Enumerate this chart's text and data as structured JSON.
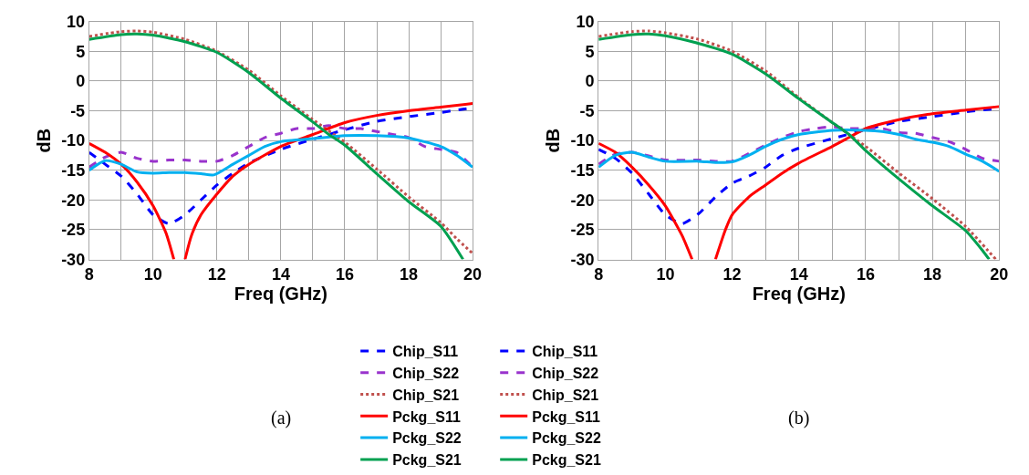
{
  "chart_data": [
    {
      "type": "line",
      "xlabel": "Freq (GHz)",
      "ylabel": "dB",
      "xlim": [
        8,
        20
      ],
      "xticks": [
        8,
        {
          "value": 9,
          "label": null
        },
        10,
        {
          "value": 11,
          "label": null
        },
        12,
        {
          "value": 13,
          "label": null
        },
        14,
        {
          "value": 15,
          "label": null
        },
        16,
        {
          "value": 17,
          "label": null
        },
        18,
        {
          "value": 19,
          "label": null
        },
        20
      ],
      "ylim": [
        -30,
        10
      ],
      "yticks": [
        -30,
        -25,
        -20,
        -15,
        -10,
        -5,
        0,
        5,
        10
      ],
      "grid": true,
      "legend": "bottom",
      "marker": "none",
      "annotations": [
        "(a)"
      ],
      "series": [
        {
          "name": "Chip_S11",
          "color": "#0000ff",
          "line_style": "dashed",
          "x": [
            8,
            8.5,
            9,
            9.5,
            10,
            10.5,
            11,
            11.5,
            12,
            12.5,
            13,
            14,
            15,
            16,
            17,
            18,
            19,
            20
          ],
          "values": [
            -12,
            -14,
            -16,
            -19,
            -22.5,
            -24,
            -22.5,
            -20,
            -17.5,
            -15.5,
            -13.8,
            -11.5,
            -9.8,
            -8.2,
            -6.8,
            -6,
            -5.3,
            -4.5
          ]
        },
        {
          "name": "Chip_S22",
          "color": "#9933cc",
          "line_style": "dashed",
          "x": [
            8,
            8.5,
            9,
            9.5,
            10,
            10.5,
            11,
            11.5,
            12,
            12.5,
            13,
            13.5,
            14,
            14.5,
            15,
            15.5,
            16,
            16.5,
            17,
            17.5,
            18,
            18.5,
            19,
            19.5,
            20
          ],
          "values": [
            -14.5,
            -12.8,
            -12,
            -13,
            -13.5,
            -13.3,
            -13.3,
            -13.5,
            -13.5,
            -12.5,
            -11,
            -9.5,
            -8.8,
            -8,
            -8,
            -7.5,
            -8,
            -8,
            -8.5,
            -9,
            -9.5,
            -11,
            -11.5,
            -12,
            -14.5
          ]
        },
        {
          "name": "Chip_S21",
          "color": "#c0504d",
          "line_style": "dotted",
          "x": [
            8,
            9,
            9.5,
            10,
            11,
            12,
            13,
            14,
            15,
            16,
            17,
            18,
            19,
            19.5,
            20
          ],
          "values": [
            7.5,
            8.3,
            8.4,
            8.2,
            7,
            5,
            1.8,
            -2.5,
            -6.5,
            -10.3,
            -14.8,
            -19.5,
            -23.8,
            -26.5,
            -29
          ]
        },
        {
          "name": "Pckg_S11",
          "color": "#ff0000",
          "line_style": "solid",
          "x": [
            8,
            8.5,
            9,
            9.5,
            10,
            10.4,
            10.65,
            10.8,
            11,
            11.2,
            11.5,
            12,
            12.5,
            13,
            14,
            15,
            16,
            17,
            18,
            19,
            20
          ],
          "values": [
            -10.5,
            -12,
            -14,
            -17,
            -21,
            -25.5,
            -30,
            null,
            -30,
            -26,
            -22.5,
            -19,
            -16,
            -14,
            -11,
            -9,
            -7,
            -5.8,
            -5,
            -4.4,
            -3.8
          ]
        },
        {
          "name": "Pckg_S22",
          "color": "#00b0f0",
          "line_style": "solid",
          "x": [
            8,
            8.5,
            9,
            9.5,
            10,
            10.5,
            11,
            11.5,
            11.9,
            12.5,
            13,
            13.5,
            14,
            15,
            16,
            17,
            18,
            19,
            19.5,
            20
          ],
          "values": [
            -15,
            -13.4,
            -14,
            -15.3,
            -15.5,
            -15.4,
            -15.4,
            -15.6,
            -15.8,
            -14,
            -12.5,
            -11,
            -10.2,
            -9.7,
            -9.2,
            -9.2,
            -9.6,
            -11,
            -12.5,
            -14.5
          ]
        },
        {
          "name": "Pckg_S21",
          "color": "#00a050",
          "line_style": "solid",
          "x": [
            8,
            9,
            9.5,
            10,
            11,
            12,
            13,
            14,
            15,
            15.5,
            16,
            17,
            18,
            19,
            19.7
          ],
          "values": [
            7,
            7.8,
            7.9,
            7.7,
            6.6,
            4.8,
            1.4,
            -2.9,
            -6.9,
            -9,
            -10.8,
            -15.6,
            -20.3,
            -24.4,
            -30
          ]
        }
      ]
    },
    {
      "type": "line",
      "xlabel": "Freq (GHz)",
      "ylabel": "dB",
      "xlim": [
        8,
        20
      ],
      "xticks": [
        8,
        {
          "value": 9,
          "label": null
        },
        10,
        {
          "value": 11,
          "label": null
        },
        12,
        {
          "value": 13,
          "label": null
        },
        14,
        {
          "value": 15,
          "label": null
        },
        16,
        {
          "value": 17,
          "label": null
        },
        18,
        {
          "value": 19,
          "label": null
        },
        20
      ],
      "ylim": [
        -30,
        10
      ],
      "yticks": [
        -30,
        -25,
        -20,
        -15,
        -10,
        -5,
        0,
        5,
        10
      ],
      "grid": true,
      "legend": "bottom",
      "marker": "none",
      "annotations": [
        "(b)"
      ],
      "series": [
        {
          "name": "Chip_S11",
          "color": "#0000ff",
          "line_style": "dashed",
          "x": [
            8,
            8.5,
            9,
            9.5,
            10,
            10.5,
            11,
            11.5,
            12,
            12.5,
            13,
            13.5,
            14,
            15,
            16,
            17,
            18,
            19,
            20
          ],
          "values": [
            -11.5,
            -13,
            -15.5,
            -19,
            -22.5,
            -24,
            -22.3,
            -19.5,
            -17.2,
            -16,
            -14.5,
            -12.5,
            -11.3,
            -9.7,
            -8.2,
            -6.8,
            -6,
            -5.2,
            -4.6
          ]
        },
        {
          "name": "Chip_S22",
          "color": "#9933cc",
          "line_style": "dashed",
          "x": [
            8,
            8.5,
            9,
            9.5,
            10,
            11,
            11.5,
            12,
            12.5,
            13,
            13.5,
            14,
            14.5,
            15,
            15.5,
            16,
            16.5,
            17,
            17.5,
            18,
            18.5,
            19,
            19.5,
            20
          ],
          "values": [
            -14,
            -12.3,
            -12,
            -12.6,
            -13.3,
            -13.3,
            -13.5,
            -13.5,
            -12.2,
            -10.8,
            -9.5,
            -8.5,
            -8,
            -7.7,
            -8,
            -8,
            -8,
            -8.7,
            -8.8,
            -9.5,
            -10.2,
            -11.5,
            -13,
            -13.5
          ]
        },
        {
          "name": "Chip_S21",
          "color": "#c0504d",
          "line_style": "dotted",
          "x": [
            8,
            9,
            9.5,
            10,
            11,
            12,
            13,
            14,
            15,
            16,
            17,
            18,
            19,
            19.9
          ],
          "values": [
            7.5,
            8.3,
            8.4,
            8.1,
            7,
            5,
            1.7,
            -2.8,
            -7,
            -11,
            -15.5,
            -19.8,
            -24.5,
            -30
          ]
        },
        {
          "name": "Pckg_S11",
          "color": "#ff0000",
          "line_style": "solid",
          "x": [
            8,
            8.5,
            9,
            9.5,
            10,
            10.5,
            10.8,
            11.1,
            11.5,
            11.8,
            12,
            12.5,
            13,
            13.5,
            14,
            15,
            15.5,
            16,
            17,
            18,
            19,
            20
          ],
          "values": [
            -10.5,
            -12,
            -14.5,
            -17.5,
            -21,
            -26,
            -30,
            null,
            -30,
            -25,
            -22.5,
            -19.5,
            -17.5,
            -15.5,
            -13.8,
            -11,
            -9.5,
            -8,
            -6.5,
            -5.5,
            -4.9,
            -4.3
          ]
        },
        {
          "name": "Pckg_S22",
          "color": "#00b0f0",
          "line_style": "solid",
          "x": [
            8,
            8.5,
            9,
            9.5,
            10,
            11,
            11.5,
            12,
            12.5,
            13,
            13.5,
            14,
            15,
            16,
            16.5,
            17,
            17.5,
            18,
            18.5,
            19,
            19.5,
            20
          ],
          "values": [
            -14.5,
            -12.5,
            -12,
            -12.8,
            -13.5,
            -13.5,
            -13.7,
            -13.6,
            -12.5,
            -11,
            -9.8,
            -9,
            -8.3,
            -8.3,
            -8.5,
            -9,
            -9.8,
            -10.3,
            -11,
            -12.3,
            -13.5,
            -15.2
          ]
        },
        {
          "name": "Pckg_S21",
          "color": "#00a050",
          "line_style": "solid",
          "x": [
            8,
            9,
            9.5,
            10,
            11,
            12,
            13,
            14,
            15,
            15.5,
            16,
            17,
            18,
            19,
            19.5,
            19.7
          ],
          "values": [
            7,
            7.8,
            7.9,
            7.6,
            6.3,
            4.5,
            1.2,
            -3,
            -7,
            -9,
            -11.7,
            -16.5,
            -21,
            -25.2,
            -28.5,
            -30
          ]
        }
      ]
    }
  ]
}
